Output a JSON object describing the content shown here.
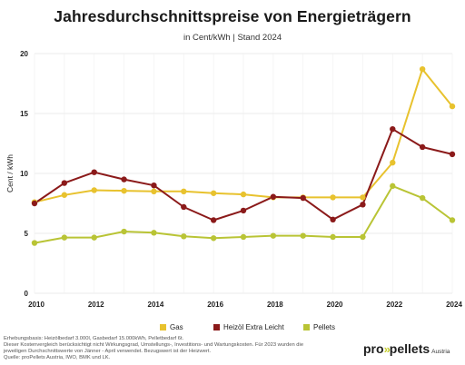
{
  "chart_data": {
    "type": "line",
    "title": "Jahresdurchschnittspreise von Energieträgern",
    "subtitle": "in Cent/kWh | Stand 2024",
    "xlabel": "",
    "ylabel": "Cent / kWh",
    "x": [
      2010,
      2011,
      2012,
      2013,
      2014,
      2015,
      2016,
      2017,
      2018,
      2019,
      2020,
      2021,
      2022,
      2023,
      2024
    ],
    "xticks": [
      2010,
      2012,
      2014,
      2016,
      2018,
      2020,
      2022,
      2024
    ],
    "xlim": [
      2010,
      2024
    ],
    "yticks": [
      0,
      5,
      10,
      15,
      20
    ],
    "ylim": [
      0,
      20
    ],
    "grid": true,
    "legend_position": "bottom",
    "series": [
      {
        "name": "Gas",
        "color": "#e8c22e",
        "values": [
          7.6,
          8.2,
          8.6,
          8.55,
          8.5,
          8.5,
          8.35,
          8.25,
          8.0,
          8.0,
          8.0,
          8.0,
          10.9,
          18.7,
          15.6
        ]
      },
      {
        "name": "Heizöl Extra Leicht",
        "color": "#8b1a1a",
        "values": [
          7.5,
          9.2,
          10.1,
          9.5,
          9.0,
          7.2,
          6.1,
          6.9,
          8.05,
          7.95,
          6.15,
          7.4,
          13.7,
          12.2,
          11.6
        ]
      },
      {
        "name": "Pellets",
        "color": "#b9c435",
        "values": [
          4.2,
          4.65,
          4.65,
          5.15,
          5.05,
          4.75,
          4.6,
          4.7,
          4.8,
          4.8,
          4.7,
          4.7,
          8.95,
          7.95,
          6.1
        ]
      }
    ]
  },
  "footnote": [
    "Erhebungsbasis: Heizölbedarf 3.000l, Gasbedarf 15.000kWh, Pelletbedarf 6t.",
    "Dieser Kostenvergleich berücksichtigt nicht Wirkungsgrad, Umstellungs-, Investitions- und Wartungskosten. Für 2023 wurden die",
    "jeweiligen Durchschnittswerte von Jänner - April verwendet. Bezugswert ist der Heizwert.",
    "Quelle: proPellets Austria, IWO, BMK und LK."
  ],
  "logo": {
    "brand_left": "pro",
    "brand_chevrons": "»",
    "brand_right": "pellets",
    "brand_sub": "Austria"
  }
}
